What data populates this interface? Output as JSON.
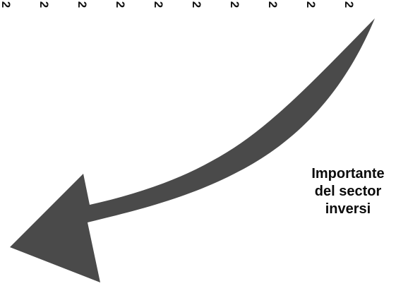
{
  "background_color": "#ffffff",
  "arrow_color": "#4a4a4a",
  "text_color": "#0b0b0b",
  "top_row": {
    "marks": [
      "2",
      "2",
      "2",
      "2",
      "2",
      "2",
      "2",
      "2",
      "2",
      "2"
    ]
  },
  "arrow": {
    "icon": "curved-arrow-down-left-icon"
  },
  "caption": {
    "lines": [
      "Importante",
      "del sector",
      "inversi"
    ]
  }
}
